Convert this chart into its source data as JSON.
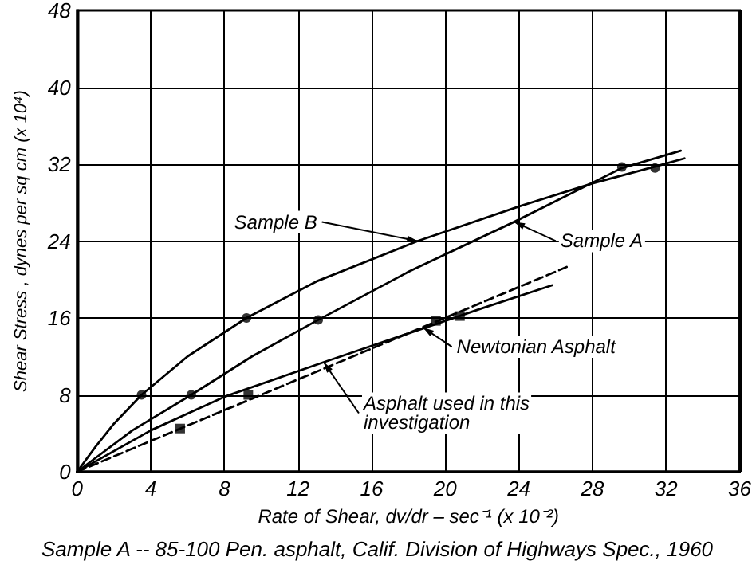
{
  "chart_data": {
    "type": "line",
    "xlabel": "Rate of Shear, dv/dr – sec⁻¹ (x 10⁻²)",
    "ylabel": "Shear Stress , dynes per sq cm (x 10⁴)",
    "xlim": [
      0,
      36
    ],
    "xticks": [
      0,
      4,
      8,
      12,
      16,
      20,
      24,
      28,
      32,
      36
    ],
    "ylim": [
      0,
      48
    ],
    "yticks": [
      0,
      8,
      16,
      24,
      32,
      40,
      48
    ],
    "grid": true,
    "marker": "none",
    "line_style": "solid",
    "series": [
      {
        "color": "#000000",
        "x": [
          0,
          1,
          2,
          3.5,
          6,
          9.2,
          13,
          18.5,
          24,
          28,
          31.5,
          33
        ],
        "values": [
          0,
          2.6,
          5,
          8,
          12,
          16,
          19.8,
          24,
          27.6,
          30,
          31.8,
          32.6
        ]
      },
      {
        "color": "#000000",
        "x": [
          0,
          3,
          6.2,
          9.5,
          13,
          18,
          23.75,
          29.6,
          32.8
        ],
        "values": [
          0,
          4.3,
          8,
          12,
          15.7,
          20.8,
          26,
          31.6,
          33.4
        ]
      },
      {
        "color": "#000000",
        "x": [
          0,
          4,
          8,
          13.4,
          18,
          22,
          25.8
        ],
        "values": [
          0,
          4.3,
          7.8,
          11.4,
          14.4,
          17,
          19.4
        ]
      },
      {
        "color": "#000000",
        "line_style": "dashed",
        "x": [
          0,
          26.6
        ],
        "values": [
          0,
          21.3
        ]
      },
      {
        "type": "scatter",
        "color": "#000000",
        "marker": "circle",
        "x": [
          3.5,
          9.2,
          31.4
        ],
        "values": [
          8,
          16,
          31.6
        ]
      },
      {
        "type": "scatter",
        "color": "#000000",
        "marker": "circle",
        "x": [
          6.2,
          13.1,
          29.6
        ],
        "values": [
          8,
          15.8,
          31.7
        ]
      },
      {
        "type": "scatter",
        "color": "#000000",
        "marker": "square",
        "x": [
          5.6,
          9.3,
          19.5,
          20.8
        ],
        "values": [
          4.5,
          8,
          15.7,
          16.2
        ]
      }
    ],
    "annotations": [
      {
        "text": "Sample B",
        "x": 18.5,
        "y": 24
      },
      {
        "text": "Sample A",
        "x": 23.75,
        "y": 26
      },
      {
        "text": "Newtonian Asphalt",
        "x": 18.8,
        "y": 15
      },
      {
        "text": "Asphalt used in this\ninvestigation",
        "x": 13.4,
        "y": 11.4
      },
      "Sample A -- 85-100 Pen. asphalt, Calif. Division of Highways Spec., 1960"
    ]
  }
}
